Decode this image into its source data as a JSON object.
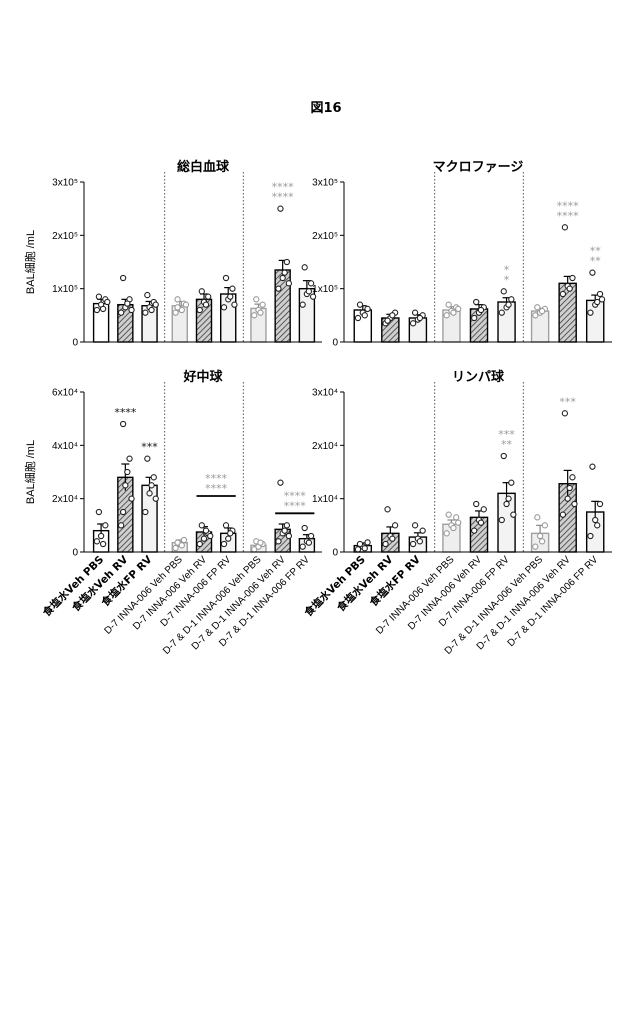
{
  "figure_title": "図16",
  "colors": {
    "dark_star": "#111111",
    "light_star": "#9a9a9a",
    "bar_light_fill": "#eeeeee",
    "bar_light_stroke": "#a0a0a0"
  },
  "chart_data": [
    {
      "type": "bar",
      "title": "総白血球",
      "ylabel": "BAL細胞 /mL",
      "ylim": [
        0,
        300000
      ],
      "ytick_labels": [
        "3x10⁵",
        "2x10⁵",
        "1x10⁵",
        "0"
      ],
      "categories": [
        "食塩水Veh PBS",
        "食塩水Veh RV",
        "食塩水FP RV",
        "D-7 INNA-006 Veh PBS",
        "D-7 INNA-006 Veh RV",
        "D-7 INNA-006 FP RV",
        "D-7 & D-1 INNA-006 Veh PBS",
        "D-7 & D-1 INNA-006 Veh RV",
        "D-7 & D-1 INNA-006 FP RV"
      ],
      "values": [
        72000,
        70000,
        68000,
        68000,
        80000,
        90000,
        63000,
        135000,
        100000
      ],
      "errors": [
        8000,
        10000,
        8000,
        8000,
        10000,
        12000,
        8000,
        18000,
        15000
      ],
      "points": [
        [
          60000,
          70000,
          80000,
          85000,
          62000,
          75000
        ],
        [
          55000,
          65000,
          80000,
          120000,
          72000,
          60000
        ],
        [
          55000,
          65000,
          75000,
          88000,
          60000,
          70000
        ],
        [
          55000,
          62000,
          72000,
          80000,
          60000,
          70000,
          65000
        ],
        [
          60000,
          75000,
          85000,
          95000,
          70000
        ],
        [
          65000,
          80000,
          100000,
          120000,
          85000,
          70000
        ],
        [
          50000,
          60000,
          70000,
          80000,
          55000
        ],
        [
          100000,
          120000,
          150000,
          250000,
          130000,
          110000
        ],
        [
          70000,
          90000,
          110000,
          140000,
          95000,
          85000
        ]
      ],
      "annotations": [
        {
          "index": 7,
          "lines": [
            "****",
            "****"
          ],
          "color": "light"
        }
      ],
      "bracket": null
    },
    {
      "type": "bar",
      "title": "マクロファージ",
      "ylabel": "",
      "ylim": [
        0,
        300000
      ],
      "ytick_labels": [
        "3x10⁵",
        "2x10⁵",
        "1x10⁵",
        "0"
      ],
      "categories": [
        "食塩水Veh PBS",
        "食塩水Veh RV",
        "食塩水FP RV",
        "D-7 INNA-006 Veh PBS",
        "D-7 INNA-006 Veh RV",
        "D-7 INNA-006 FP RV",
        "D-7 & D-1 INNA-006 Veh PBS",
        "D-7 & D-1 INNA-006 Veh RV",
        "D-7 & D-1 INNA-006 FP RV"
      ],
      "values": [
        60000,
        45000,
        45000,
        60000,
        62000,
        75000,
        58000,
        110000,
        78000
      ],
      "errors": [
        8000,
        7000,
        6000,
        6000,
        8000,
        8000,
        5000,
        13000,
        10000
      ],
      "points": [
        [
          45000,
          55000,
          62000,
          70000,
          50000
        ],
        [
          35000,
          45000,
          55000,
          40000,
          50000
        ],
        [
          35000,
          42000,
          50000,
          55000,
          45000
        ],
        [
          50000,
          58000,
          65000,
          70000,
          55000,
          62000
        ],
        [
          45000,
          55000,
          65000,
          75000,
          60000
        ],
        [
          55000,
          65000,
          80000,
          95000,
          70000
        ],
        [
          50000,
          55000,
          62000,
          65000,
          58000
        ],
        [
          90000,
          105000,
          120000,
          215000,
          100000
        ],
        [
          55000,
          70000,
          90000,
          130000,
          75000,
          80000
        ]
      ],
      "annotations": [
        {
          "index": 5,
          "lines": [
            "*",
            "*"
          ],
          "color": "light"
        },
        {
          "index": 7,
          "lines": [
            "****",
            "****"
          ],
          "color": "light"
        },
        {
          "index": 8,
          "lines": [
            "**",
            "**"
          ],
          "color": "light"
        }
      ],
      "bracket": null
    },
    {
      "type": "bar",
      "title": "好中球",
      "ylabel": "BAL細胞 /mL",
      "ylim": [
        0,
        60000
      ],
      "ytick_labels": [
        "6x10⁴",
        "4x10⁴",
        "2x10⁴",
        "0"
      ],
      "categories": [
        "食塩水Veh PBS",
        "食塩水Veh RV",
        "食塩水FP RV",
        "D-7 INNA-006 Veh PBS",
        "D-7 INNA-006 Veh RV",
        "D-7 INNA-006 FP RV",
        "D-7 & D-1 INNA-006 Veh PBS",
        "D-7 & D-1 INNA-006 Veh RV",
        "D-7 & D-1 INNA-006 FP RV"
      ],
      "values": [
        8000,
        28000,
        25000,
        3500,
        7500,
        7000,
        2500,
        8500,
        5000
      ],
      "errors": [
        2500,
        5000,
        3000,
        1000,
        2000,
        2000,
        1000,
        2000,
        1500
      ],
      "points": [
        [
          4000,
          6000,
          10000,
          15000,
          3000
        ],
        [
          10000,
          25000,
          35000,
          48000,
          30000,
          20000,
          15000
        ],
        [
          15000,
          22000,
          28000,
          35000,
          25000,
          20000
        ],
        [
          1500,
          3000,
          4500,
          3500,
          2500
        ],
        [
          3000,
          5000,
          7000,
          10000,
          8000,
          6000
        ],
        [
          3000,
          5000,
          8000,
          10000,
          7000
        ],
        [
          1000,
          2000,
          3000,
          4000,
          3500
        ],
        [
          4000,
          7000,
          10000,
          26000,
          8000,
          6000
        ],
        [
          2000,
          4000,
          6000,
          9000,
          3500
        ]
      ],
      "annotations": [
        {
          "index": 1,
          "lines": [
            "****"
          ],
          "color": "dark"
        },
        {
          "index": 2,
          "lines": [
            "***"
          ],
          "color": "dark"
        },
        {
          "index": 4,
          "lines": [
            "****",
            "****"
          ],
          "color": "light"
        },
        {
          "index": 7,
          "lines": [
            "****",
            "****"
          ],
          "color": "light"
        }
      ],
      "bracket": [
        {
          "from": 4,
          "to": 5,
          "value": 21000
        },
        {
          "from": 7,
          "to": 8,
          "value": 14500
        }
      ]
    },
    {
      "type": "bar",
      "title": "リンパ球",
      "ylabel": "",
      "ylim": [
        0,
        30000
      ],
      "ytick_labels": [
        "3x10⁴",
        "2x10⁴",
        "1x10⁴",
        "0"
      ],
      "categories": [
        "食塩水Veh PBS",
        "食塩水Veh RV",
        "食塩水FP RV",
        "D-7 INNA-006 Veh PBS",
        "D-7 INNA-006 Veh RV",
        "D-7 INNA-006 FP RV",
        "D-7 & D-1 INNA-006 Veh PBS",
        "D-7 & D-1 INNA-006 Veh RV",
        "D-7 & D-1 INNA-006 FP RV"
      ],
      "values": [
        1200,
        3500,
        2800,
        5200,
        6500,
        11000,
        3500,
        12800,
        7500
      ],
      "errors": [
        500,
        1200,
        800,
        800,
        1200,
        2000,
        1500,
        2500,
        2000
      ],
      "points": [
        [
          500,
          1000,
          1800,
          1500,
          700
        ],
        [
          1500,
          3000,
          5000,
          8000,
          2500
        ],
        [
          1500,
          2500,
          4000,
          5000,
          2000
        ],
        [
          3500,
          5000,
          6500,
          7000,
          4500,
          5500
        ],
        [
          4000,
          6000,
          8000,
          9000,
          5500
        ],
        [
          6000,
          9000,
          13000,
          18000,
          10000,
          7000
        ],
        [
          1000,
          3000,
          5000,
          6500,
          2000
        ],
        [
          7000,
          10000,
          14000,
          26000,
          12000,
          9000
        ],
        [
          3000,
          6000,
          9000,
          16000,
          5000
        ]
      ],
      "annotations": [
        {
          "index": 5,
          "lines": [
            "***",
            "**"
          ],
          "color": "light"
        },
        {
          "index": 7,
          "lines": [
            "***"
          ],
          "color": "light"
        }
      ],
      "bracket": null
    }
  ]
}
